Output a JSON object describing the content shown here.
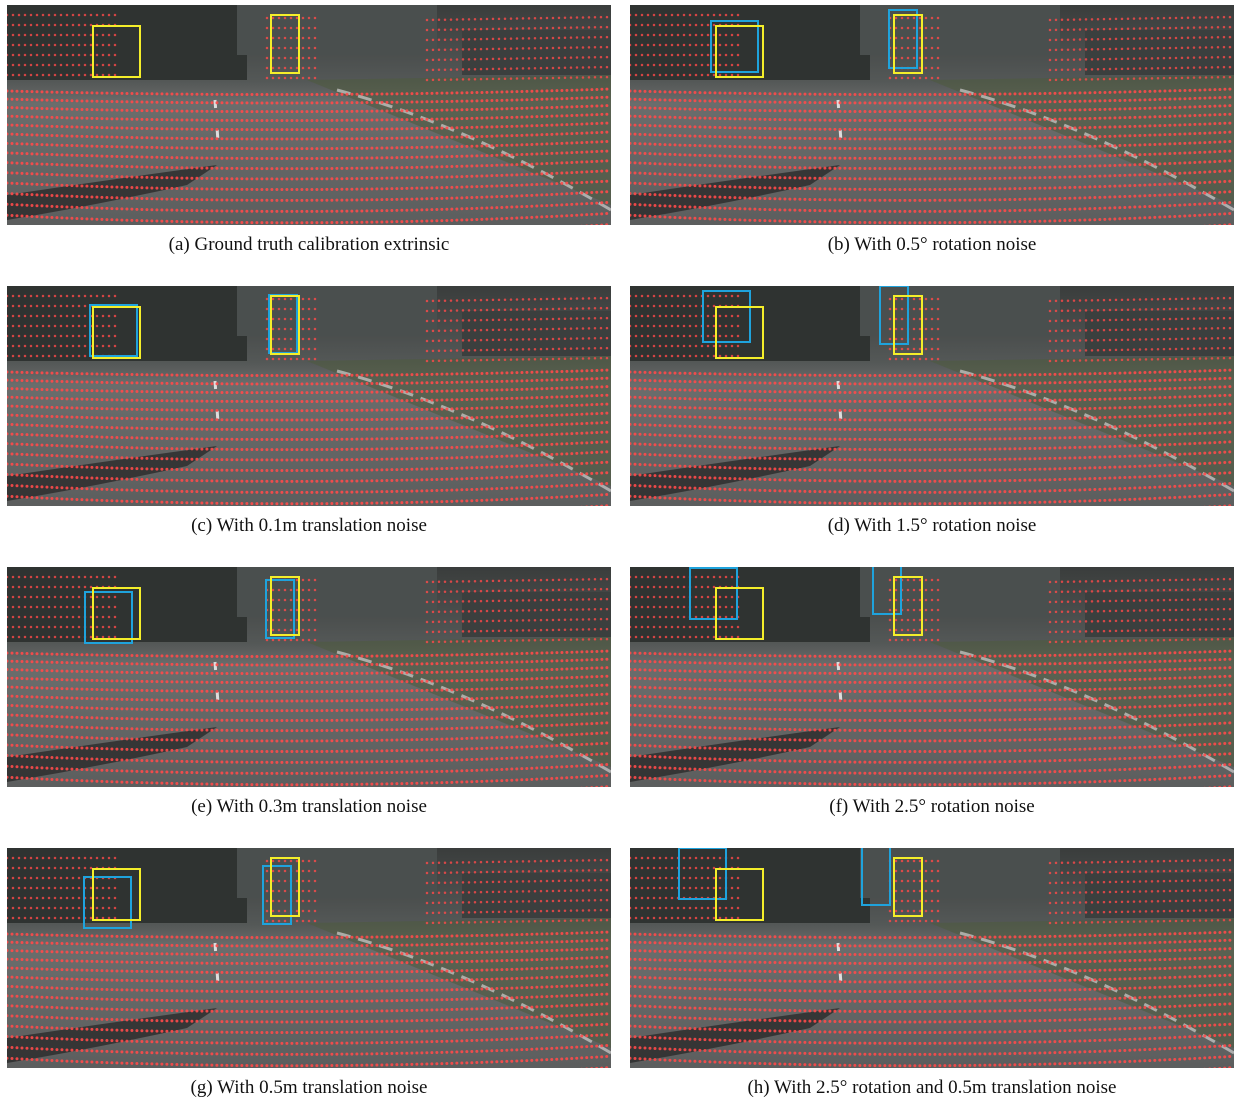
{
  "panels": [
    {
      "caption": "(a) Ground truth calibration extrinsic"
    },
    {
      "caption": "(b) With 0.5° rotation noise"
    },
    {
      "caption": "(c) With 0.1m translation noise"
    },
    {
      "caption": "(d) With 1.5° rotation noise"
    },
    {
      "caption": "(e) With 0.3m translation noise"
    },
    {
      "caption": "(f) With 2.5° rotation noise"
    },
    {
      "caption": "(g) With 0.5m translation noise"
    },
    {
      "caption": "(h) With 2.5° rotation and 0.5m translation noise"
    }
  ]
}
